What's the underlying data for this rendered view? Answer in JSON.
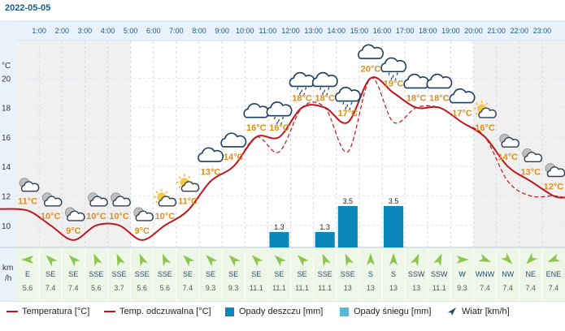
{
  "date": "2022-05-05",
  "unit_temp": "°C",
  "unit_wind": "km\n/h",
  "colors": {
    "temperature": "#c0161f",
    "rain": "#0a86b8",
    "snow": "#58b8d8",
    "wind": "#2a4a6a",
    "wind_arrow": "#8cc44c",
    "temp_label": "#e08e1a"
  },
  "chart_data": {
    "type": "line",
    "hours": [
      "1:00",
      "2:00",
      "3:00",
      "4:00",
      "5:00",
      "6:00",
      "7:00",
      "8:00",
      "9:00",
      "10:00",
      "11:00",
      "12:00",
      "13:00",
      "14:00",
      "15:00",
      "16:00",
      "17:00",
      "18:00",
      "19:00",
      "20:00",
      "21:00",
      "22:00",
      "23:00"
    ],
    "y_ticks": [
      10,
      12,
      14,
      16,
      18,
      20
    ],
    "ylim": [
      8.5,
      22.5
    ],
    "temperature": [
      11,
      10,
      9,
      10,
      10,
      9,
      10,
      11,
      13,
      14,
      16,
      16,
      18,
      18,
      17,
      20,
      19,
      18,
      18,
      17,
      16,
      14,
      13,
      12
    ],
    "temperature_labels": [
      "11°C",
      "10°C",
      "9°C",
      "10°C",
      "10°C",
      "9°C",
      "10°C",
      "11°C",
      "13°C",
      "14°C",
      "16°C",
      "16°C",
      "18°C",
      "18°C",
      "17°C",
      "20°C",
      "19°C",
      "18°C",
      "18°C",
      "17°C",
      "16°C",
      "14°C",
      "13°C",
      "12°C"
    ],
    "feels_like": [
      11,
      10,
      9,
      10,
      10,
      9,
      10,
      11,
      13,
      14,
      16,
      15,
      18,
      18,
      15,
      20,
      17,
      18,
      18,
      17,
      16,
      13,
      12,
      12
    ],
    "weather_icons": [
      "night-partly-cloudy",
      "night-partly-cloudy",
      "night-partly-cloudy",
      "night-partly-cloudy",
      "night-partly-cloudy",
      "night-partly-cloudy",
      "day-partly-sunny",
      "day-partly-sunny",
      "cloudy",
      "cloudy",
      "cloudy",
      "cloud-rain",
      "cloud-rain",
      "cloud-rain",
      "cloud-rain",
      "cloudy",
      "cloud-rain",
      "cloudy",
      "cloudy",
      "cloudy",
      "day-partly-sunny",
      "night-partly-cloudy",
      "night-partly-cloudy",
      "night-partly-cloudy"
    ],
    "rain": [
      0,
      0,
      0,
      0,
      0,
      0,
      0,
      0,
      0,
      0,
      0,
      1.3,
      0,
      1.3,
      3.5,
      0,
      3.5,
      0,
      0,
      0,
      0,
      0,
      0,
      0
    ],
    "rain_labels": [
      "",
      "",
      "",
      "",
      "",
      "",
      "",
      "",
      "",
      "",
      "",
      "1.3",
      "",
      "1.3",
      "3.5",
      "",
      "3.5",
      "",
      "",
      "",
      "",
      "",
      "",
      ""
    ],
    "rain_max": 6.5,
    "snow": [
      0,
      0,
      0,
      0,
      0,
      0,
      0,
      0,
      0,
      0,
      0,
      0,
      0,
      0,
      0,
      0,
      0,
      0,
      0,
      0,
      0,
      0,
      0,
      0
    ],
    "wind_dir": [
      "E",
      "SE",
      "SE",
      "SSE",
      "SSE",
      "SSE",
      "SSE",
      "SE",
      "SE",
      "SE",
      "SE",
      "SE",
      "SE",
      "SSE",
      "SSE",
      "S",
      "S",
      "SSW",
      "SSW",
      "W",
      "WNW",
      "NW",
      "NE",
      "ENE"
    ],
    "wind_speed": [
      "5.6",
      "7.4",
      "7.4",
      "5.6",
      "3.7",
      "5.6",
      "5.6",
      "7.4",
      "9.3",
      "9.3",
      "11.1",
      "11.1",
      "11.1",
      "11.1",
      "13",
      "13",
      "13",
      "13",
      "11.1",
      "9.3",
      "7.4",
      "7.4",
      "7.4",
      "7.4"
    ]
  },
  "legend": {
    "temperature": "Temperatura [°C]",
    "feels_like": "Temp. odczuwalna [°C]",
    "rain": "Opady deszczu [mm]",
    "snow": "Opady śniegu [mm]",
    "wind": "Wiatr [km/h]"
  }
}
